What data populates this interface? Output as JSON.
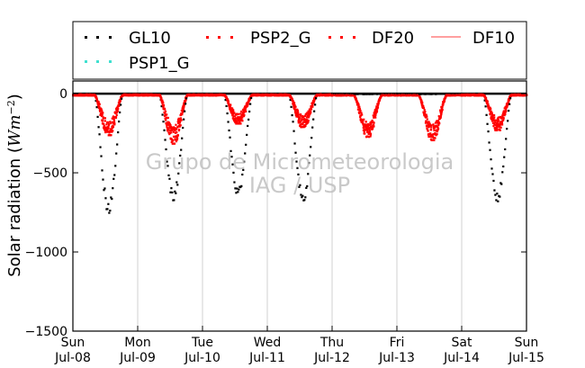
{
  "chart_data": {
    "type": "scatter",
    "title": "",
    "xlabel": "",
    "ylabel": "Solar radiation (Wm⁻²)",
    "ylabel_plain": "Solar radiation (",
    "ylabel_unit_base": "Wm",
    "ylabel_unit_exp": "−2",
    "ylabel_close": ")",
    "ylim": [
      -1500,
      80
    ],
    "yticks": [
      {
        "value": 0,
        "label": "0"
      },
      {
        "value": -500,
        "label": "−500"
      },
      {
        "value": -1000,
        "label": "−1000"
      },
      {
        "value": -1500,
        "label": "−1500"
      }
    ],
    "xlim": [
      0,
      7
    ],
    "xticks": [
      {
        "value": 0,
        "day": "Sun",
        "date": "Jul-08"
      },
      {
        "value": 1,
        "day": "Mon",
        "date": "Jul-09"
      },
      {
        "value": 2,
        "day": "Tue",
        "date": "Jul-10"
      },
      {
        "value": 3,
        "day": "Wed",
        "date": "Jul-11"
      },
      {
        "value": 4,
        "day": "Thu",
        "date": "Jul-12"
      },
      {
        "value": 5,
        "day": "Fri",
        "date": "Jul-13"
      },
      {
        "value": 6,
        "day": "Sat",
        "date": "Jul-14"
      },
      {
        "value": 7,
        "day": "Sun",
        "date": "Jul-15"
      }
    ],
    "grid": "vertical",
    "legend_position": "top",
    "watermark": [
      "Grupo de Micrometeorologia",
      "IAG / USP"
    ],
    "series": [
      {
        "name": "GL10",
        "style": "points",
        "color": "#000000",
        "daily_minimum": [
          -750,
          -670,
          -650,
          -680,
          -10,
          -5,
          -680
        ]
      },
      {
        "name": "PSP2_G",
        "style": "points",
        "color": "#ff0000"
      },
      {
        "name": "DF20",
        "style": "points",
        "color": "#ff0000",
        "daily_minimum": [
          -250,
          -300,
          -180,
          -200,
          -260,
          -280,
          -220
        ]
      },
      {
        "name": "DF10",
        "style": "line",
        "color": "#ff6666"
      },
      {
        "name": "PSP1_G",
        "style": "points",
        "color": "#40e0d0"
      }
    ]
  }
}
